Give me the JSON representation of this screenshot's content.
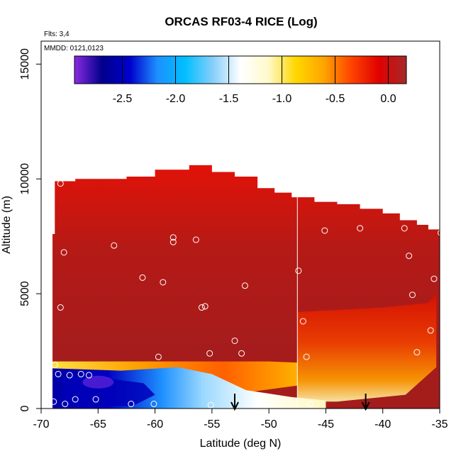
{
  "chart_data": {
    "type": "heatmap",
    "title": "ORCAS RF03-4 RICE (Log)",
    "flights_note": "Flts: 3,4",
    "date_note": "MMDD: 0121,0123",
    "xlabel": "Latitude (deg N)",
    "ylabel": "Altitude (m)",
    "xlim": [
      -70,
      -35
    ],
    "ylim": [
      0,
      16000
    ],
    "x_ticks": [
      -70,
      -65,
      -60,
      -55,
      -50,
      -45,
      -40,
      -35
    ],
    "y_ticks": [
      0,
      5000,
      10000,
      15000
    ],
    "colorbar": {
      "range": [
        -2.95,
        0.17
      ],
      "ticks": [
        -2.5,
        -2.0,
        -1.5,
        -1.0,
        -0.5,
        0.0
      ],
      "tick_labels": [
        "-2.5",
        "-2.0",
        "-1.5",
        "-1.0",
        "-0.5",
        "0.0"
      ],
      "colors": [
        "#8a2be2",
        "#00008b",
        "#0000cd",
        "#1e90ff",
        "#00bfff",
        "#87cefa",
        "#ffffff",
        "#fffacd",
        "#ffd700",
        "#ffa500",
        "#ff4500",
        "#e00000",
        "#a52a2a"
      ]
    },
    "field_top_envelope": [
      [
        -69,
        7600
      ],
      [
        -68.8,
        9900
      ],
      [
        -67,
        10000
      ],
      [
        -62.5,
        10100
      ],
      [
        -60,
        10400
      ],
      [
        -57,
        10600
      ],
      [
        -55,
        10300
      ],
      [
        -53,
        10100
      ],
      [
        -51,
        9600
      ],
      [
        -49.5,
        9400
      ],
      [
        -48,
        9200
      ],
      [
        -46,
        9000
      ],
      [
        -44,
        8900
      ],
      [
        -42,
        8700
      ],
      [
        -40,
        8500
      ],
      [
        -38.5,
        8200
      ],
      [
        -37,
        8000
      ],
      [
        -36,
        7800
      ],
      [
        -35,
        7700
      ]
    ],
    "vertical_profiles": [
      -47.5
    ],
    "sample_points": [
      [
        -68.9,
        300
      ],
      [
        -67.9,
        200
      ],
      [
        -67,
        400
      ],
      [
        -65.2,
        400
      ],
      [
        -62.1,
        200
      ],
      [
        -60.1,
        200
      ],
      [
        -55.1,
        150
      ],
      [
        -46.4,
        200
      ],
      [
        -68.5,
        1500
      ],
      [
        -67.5,
        1450
      ],
      [
        -66.5,
        1500
      ],
      [
        -65.8,
        1450
      ],
      [
        -68.8,
        1900
      ],
      [
        -59.7,
        2250
      ],
      [
        -55.2,
        2400
      ],
      [
        -52.4,
        2400
      ],
      [
        -53,
        2950
      ],
      [
        -68.3,
        4400
      ],
      [
        -68,
        6800
      ],
      [
        -68.3,
        9800
      ],
      [
        -63.6,
        7100
      ],
      [
        -61.1,
        5700
      ],
      [
        -59.3,
        5500
      ],
      [
        -58.4,
        7450
      ],
      [
        -58.4,
        7250
      ],
      [
        -56.4,
        7350
      ],
      [
        -55.6,
        4450
      ],
      [
        -55.9,
        4400
      ],
      [
        -52.1,
        5350
      ],
      [
        -47.4,
        6000
      ],
      [
        -47,
        3800
      ],
      [
        -46.7,
        2250
      ],
      [
        -45.1,
        7750
      ],
      [
        -42,
        7850
      ],
      [
        -38.1,
        7850
      ],
      [
        -37.7,
        6650
      ],
      [
        -37.4,
        4950
      ],
      [
        -35.8,
        3400
      ],
      [
        -35.5,
        5650
      ],
      [
        -37,
        2450
      ],
      [
        -34.9,
        7650
      ]
    ],
    "arrows_at_latitude": [
      -53,
      -41.5
    ]
  }
}
